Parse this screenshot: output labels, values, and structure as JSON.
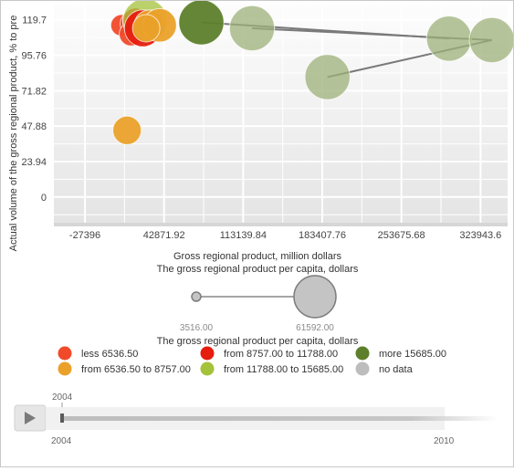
{
  "chart_data": {
    "type": "bubble",
    "xlabel": "Gross regional product, million dollars",
    "ylabel": "Actual volume of the gross regional product, % to pre",
    "xlim": [
      -55000,
      348000
    ],
    "ylim": [
      -18,
      130
    ],
    "x_ticks": [
      "-27396",
      "42871.92",
      "113139.84",
      "183407.76",
      "253675.68",
      "323943.6"
    ],
    "y_ticks": [
      "0",
      "23.94",
      "47.88",
      "71.82",
      "95.76",
      "119.7"
    ],
    "x_tick_values": [
      -27396,
      42871.92,
      113139.84,
      183407.76,
      253675.68,
      323943.6
    ],
    "y_tick_values": [
      0,
      23.94,
      47.88,
      71.82,
      95.76,
      119.7
    ],
    "bubbles": [
      {
        "x": 5000,
        "y": 116,
        "size": 4000,
        "category": "less"
      },
      {
        "x": 15000,
        "y": 117,
        "size": 6000,
        "category": "less"
      },
      {
        "x": 17500,
        "y": 119,
        "size": 6500,
        "category": "less"
      },
      {
        "x": 13500,
        "y": 110,
        "size": 5000,
        "category": "less"
      },
      {
        "x": 26000,
        "y": 119,
        "size": 40000,
        "category": "light"
      },
      {
        "x": 24000,
        "y": 114,
        "size": 22000,
        "category": "red"
      },
      {
        "x": 30000,
        "y": 116,
        "size": 12000,
        "category": "mid"
      },
      {
        "x": 39000,
        "y": 116,
        "size": 16000,
        "category": "mid"
      },
      {
        "x": 27000,
        "y": 114,
        "size": 8000,
        "category": "mid"
      },
      {
        "x": 10000,
        "y": 45,
        "size": 9000,
        "category": "mid"
      },
      {
        "x": 121000,
        "y": 114,
        "size": 42000,
        "category": "nodata"
      },
      {
        "x": 188000,
        "y": 81,
        "size": 42000,
        "category": "nodata"
      },
      {
        "x": 296000,
        "y": 107,
        "size": 42000,
        "category": "nodata"
      },
      {
        "x": 334000,
        "y": 106,
        "size": 42000,
        "category": "nodata"
      },
      {
        "x": 76000,
        "y": 118,
        "size": 42000,
        "category": "high"
      }
    ],
    "trails": [
      [
        [
          76000,
          118
        ],
        [
          296000,
          107
        ]
      ],
      [
        [
          121000,
          114
        ],
        [
          334000,
          106
        ]
      ],
      [
        [
          188000,
          81
        ],
        [
          334000,
          106
        ]
      ]
    ]
  },
  "size_legend": {
    "title": "The gross regional product per capita, dollars",
    "min": "3516.00",
    "max": "61592.00"
  },
  "color_legend": {
    "title": "The gross regional product per capita, dollars",
    "items": [
      {
        "label": "less 6536.50",
        "color": "#f04a2a"
      },
      {
        "label": "from 8757.00 to 11788.00",
        "color": "#e61c0e"
      },
      {
        "label": "more 15685.00",
        "color": "#5d7f2b"
      },
      {
        "label": "from 6536.50 to 8757.00",
        "color": "#eaa12a"
      },
      {
        "label": "from 11788.00 to 15685.00",
        "color": "#a4c23a"
      },
      {
        "label": "no data",
        "color": "#bdbdbd"
      }
    ]
  },
  "timeline": {
    "current": "2004",
    "start": "2004",
    "end": "2010",
    "progress": 0
  },
  "colors": {
    "less": "#f04a2a",
    "red": "#e61c0e",
    "mid": "#eaa12a",
    "light": "#a4c23a",
    "high": "#5d7f2b",
    "nodata": "#9eb07a"
  }
}
